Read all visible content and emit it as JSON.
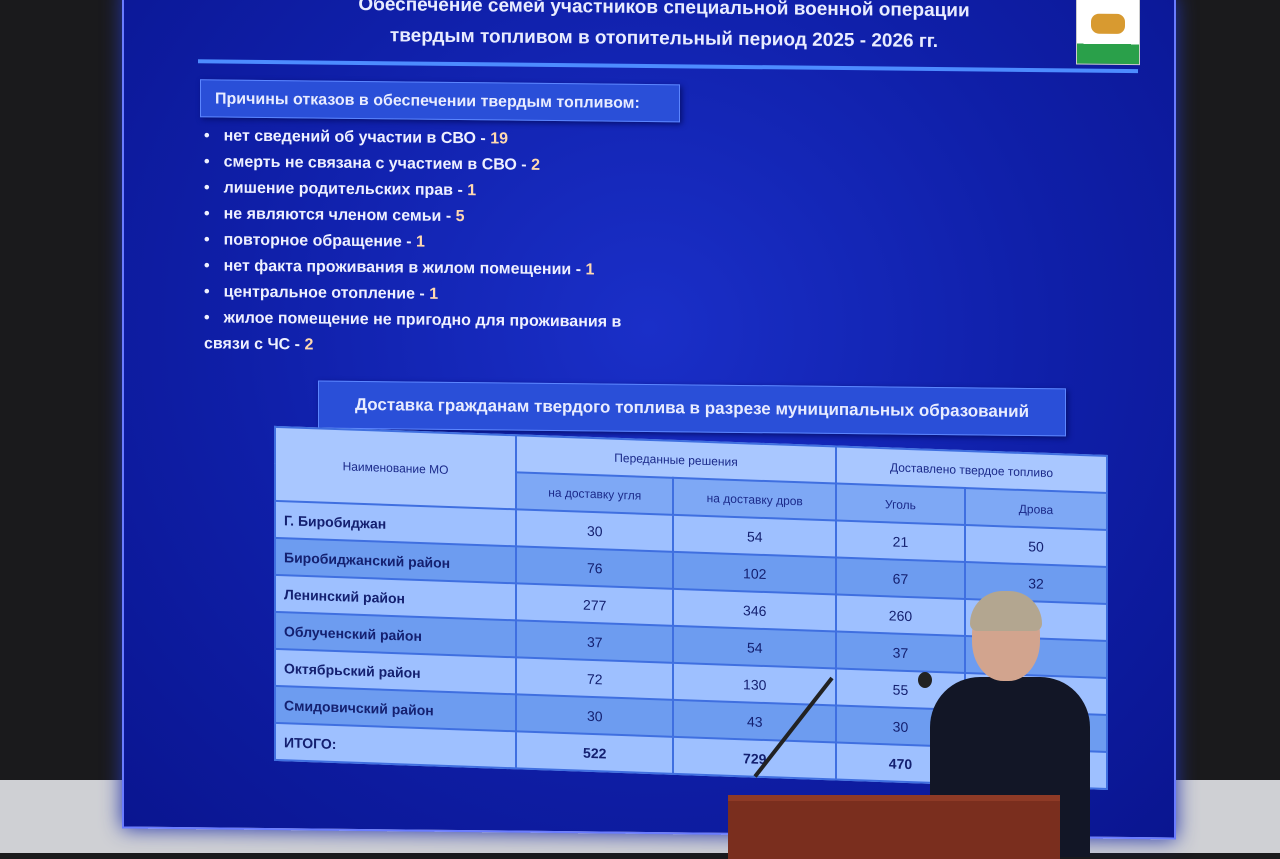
{
  "slide": {
    "title_line1": "Обеспечение семей участников специальной военной операции",
    "title_line2": "твердым топливом в отопительный период 2025 - 2026 гг.",
    "reasons_heading": "Причины отказов в обеспечении твердым топливом:",
    "reasons": [
      {
        "text": "нет сведений об участии в СВО - ",
        "count": "19"
      },
      {
        "text": "смерть не связана с участием в СВО - ",
        "count": "2"
      },
      {
        "text": "лишение родительских прав - ",
        "count": "1"
      },
      {
        "text": "не являются членом семьи - ",
        "count": "5"
      },
      {
        "text": "повторное обращение - ",
        "count": "1"
      },
      {
        "text": "нет факта проживания в жилом помещении - ",
        "count": "1"
      },
      {
        "text": "центральное отопление - ",
        "count": "1"
      },
      {
        "text": "жилое помещение не пригодно для проживания в связи с ЧС - ",
        "count": "2"
      }
    ],
    "delivery_heading": "Доставка гражданам твердого топлива  в разрезе муниципальных образований",
    "table": {
      "headers": {
        "name": "Наименование МО",
        "decisions": "Переданные решения",
        "delivered": "Доставлено твердое топливо",
        "coal_decision": "на доставку угля",
        "wood_decision": "на доставку дров",
        "coal": "Уголь",
        "wood": "Дрова"
      },
      "rows": [
        [
          "Г. Биробиджан",
          "30",
          "54",
          "21",
          "50"
        ],
        [
          "Биробиджанский район",
          "76",
          "102",
          "67",
          "32"
        ],
        [
          "Ленинский район",
          "277",
          "346",
          "260",
          ""
        ],
        [
          "Облученский район",
          "37",
          "54",
          "37",
          ""
        ],
        [
          "Октябрьский район",
          "72",
          "130",
          "55",
          ""
        ],
        [
          "Смидовичский район",
          "30",
          "43",
          "30",
          ""
        ],
        [
          "ИТОГО:",
          "522",
          "729",
          "470",
          ""
        ]
      ]
    }
  }
}
